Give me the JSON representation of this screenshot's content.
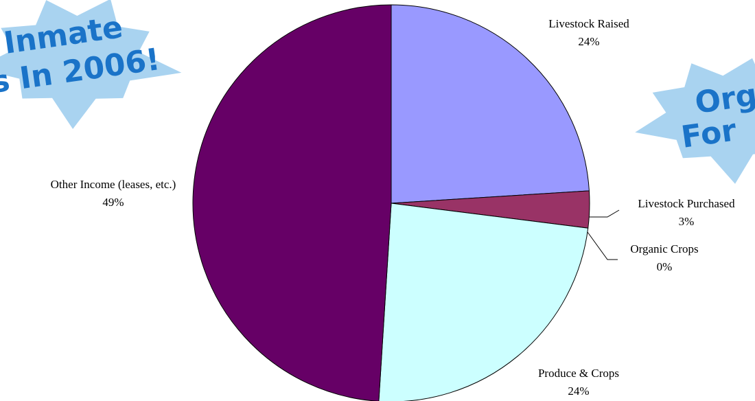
{
  "chart_data": {
    "type": "pie",
    "categories": [
      "Livestock Raised",
      "Livestock Purchased",
      "Organic Crops",
      "Produce & Crops",
      "Other Income (leases, etc.)"
    ],
    "values": [
      24,
      3,
      0,
      24,
      49
    ],
    "value_labels": [
      "24%",
      "3%",
      "0%",
      "24%",
      "49%"
    ],
    "colors": [
      "#9999ff",
      "#993366",
      "#ffffcc",
      "#ccffff",
      "#660066"
    ],
    "annotations": [
      "Inmate",
      "s In 2006!",
      "Org",
      "For"
    ]
  }
}
